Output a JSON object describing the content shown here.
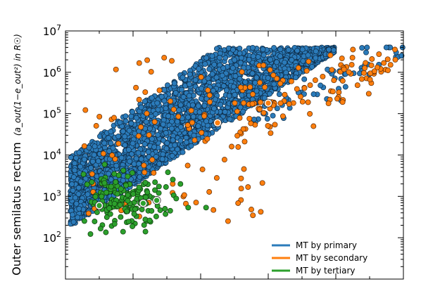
{
  "chart_data": {
    "type": "scatter",
    "title": "",
    "xlabel": "",
    "ylabel": "Outer semilatus rectum",
    "ylabel_math": "(a_out(1−e_out²) in R☉)",
    "yscale": "log",
    "ylim": [
      10,
      10000000
    ],
    "xlim": [
      0,
      1
    ],
    "yticks": [
      {
        "label_base": "10",
        "label_exp": "2",
        "value": 100
      },
      {
        "label_base": "10",
        "label_exp": "3",
        "value": 1000
      },
      {
        "label_base": "10",
        "label_exp": "4",
        "value": 10000
      },
      {
        "label_base": "10",
        "label_exp": "5",
        "value": 100000
      },
      {
        "label_base": "10",
        "label_exp": "6",
        "value": 1000000
      },
      {
        "label_base": "10",
        "label_exp": "7",
        "value": 10000000
      }
    ],
    "xtick_labels_visible": false,
    "grid": false,
    "legend_position": "bottom-right",
    "series": [
      {
        "name": "MT by primary",
        "color": "#2b7bba",
        "edge": "#0d2a44",
        "count": 2600
      },
      {
        "name": "MT by secondary",
        "color": "#ff7f0e",
        "edge": "#5a2a05",
        "count": 200
      },
      {
        "name": "MT by tertiary",
        "color": "#2ca02c",
        "edge": "#0e3a0e",
        "count": 170
      }
    ],
    "highlighted_points": [
      {
        "series": "MT by tertiary",
        "x": 0.1,
        "y": 600
      },
      {
        "series": "MT by tertiary",
        "x": 0.23,
        "y": 680
      },
      {
        "series": "MT by tertiary",
        "x": 0.27,
        "y": 800
      },
      {
        "series": "MT by secondary",
        "x": 0.45,
        "y": 60000
      },
      {
        "series": "MT by secondary",
        "x": 0.6,
        "y": 180000
      }
    ]
  }
}
